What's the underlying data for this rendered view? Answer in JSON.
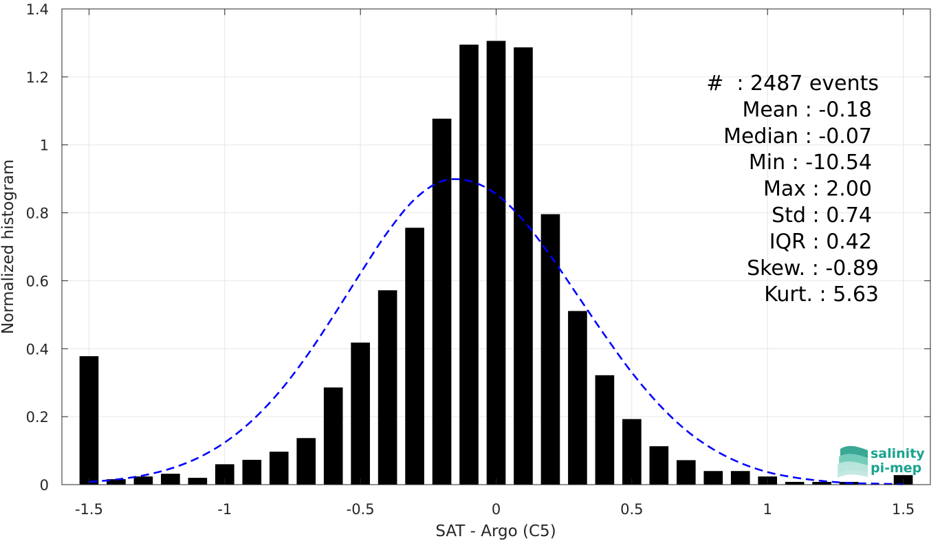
{
  "chart_data": {
    "type": "bar",
    "xlabel": "SAT - Argo (C5)",
    "ylabel": "Normalized histogram",
    "xlim": [
      -1.6,
      1.6
    ],
    "ylim": [
      0,
      1.4
    ],
    "xticks": [
      "-1.5",
      "-1",
      "-0.5",
      "0",
      "0.5",
      "1",
      "1.5"
    ],
    "yticks": [
      "0",
      "0.2",
      "0.4",
      "0.6",
      "0.8",
      "1",
      "1.2",
      "1.4"
    ],
    "grid": true,
    "bar_color": "#000000",
    "fit_color": "#0000ff",
    "bins": {
      "x": [
        -1.5,
        -1.4,
        -1.3,
        -1.2,
        -1.1,
        -1.0,
        -0.9,
        -0.8,
        -0.7,
        -0.6,
        -0.5,
        -0.4,
        -0.3,
        -0.2,
        -0.1,
        0.0,
        0.1,
        0.2,
        0.3,
        0.4,
        0.5,
        0.6,
        0.7,
        0.8,
        0.9,
        1.0,
        1.1,
        1.2,
        1.3,
        1.4,
        1.5
      ],
      "values": [
        0.378,
        0.016,
        0.024,
        0.032,
        0.02,
        0.06,
        0.073,
        0.097,
        0.137,
        0.286,
        0.418,
        0.572,
        0.756,
        1.077,
        1.295,
        1.306,
        1.287,
        0.796,
        0.511,
        0.322,
        0.193,
        0.113,
        0.072,
        0.04,
        0.04,
        0.024,
        0.008,
        0.008,
        0.008,
        0.0,
        0.028
      ]
    },
    "fit": {
      "style": "dashed",
      "x": [
        -1.5,
        -1.4,
        -1.3,
        -1.2,
        -1.1,
        -1.0,
        -0.9,
        -0.8,
        -0.7,
        -0.6,
        -0.5,
        -0.4,
        -0.3,
        -0.2,
        -0.1,
        0.0,
        0.1,
        0.2,
        0.3,
        0.4,
        0.5,
        0.6,
        0.7,
        0.8,
        0.9,
        1.0,
        1.1,
        1.2,
        1.3,
        1.4,
        1.5
      ],
      "values": [
        0.008,
        0.015,
        0.027,
        0.047,
        0.078,
        0.124,
        0.188,
        0.272,
        0.376,
        0.496,
        0.622,
        0.743,
        0.84,
        0.893,
        0.894,
        0.855,
        0.778,
        0.674,
        0.557,
        0.44,
        0.33,
        0.236,
        0.16,
        0.104,
        0.064,
        0.037,
        0.021,
        0.011,
        0.005,
        0.003,
        0.001
      ]
    }
  },
  "stats": [
    "#  : 2487 events",
    "Mean : -0.18",
    "Median : -0.07",
    "Min : -10.54",
    "Max : 2.00",
    "Std : 0.74",
    "IQR : 0.42",
    "Skew. : -0.89",
    "Kurt. : 5.63"
  ],
  "logo": {
    "line1": "salinity",
    "line2": "pi-mep",
    "color": "#1aa38f"
  }
}
